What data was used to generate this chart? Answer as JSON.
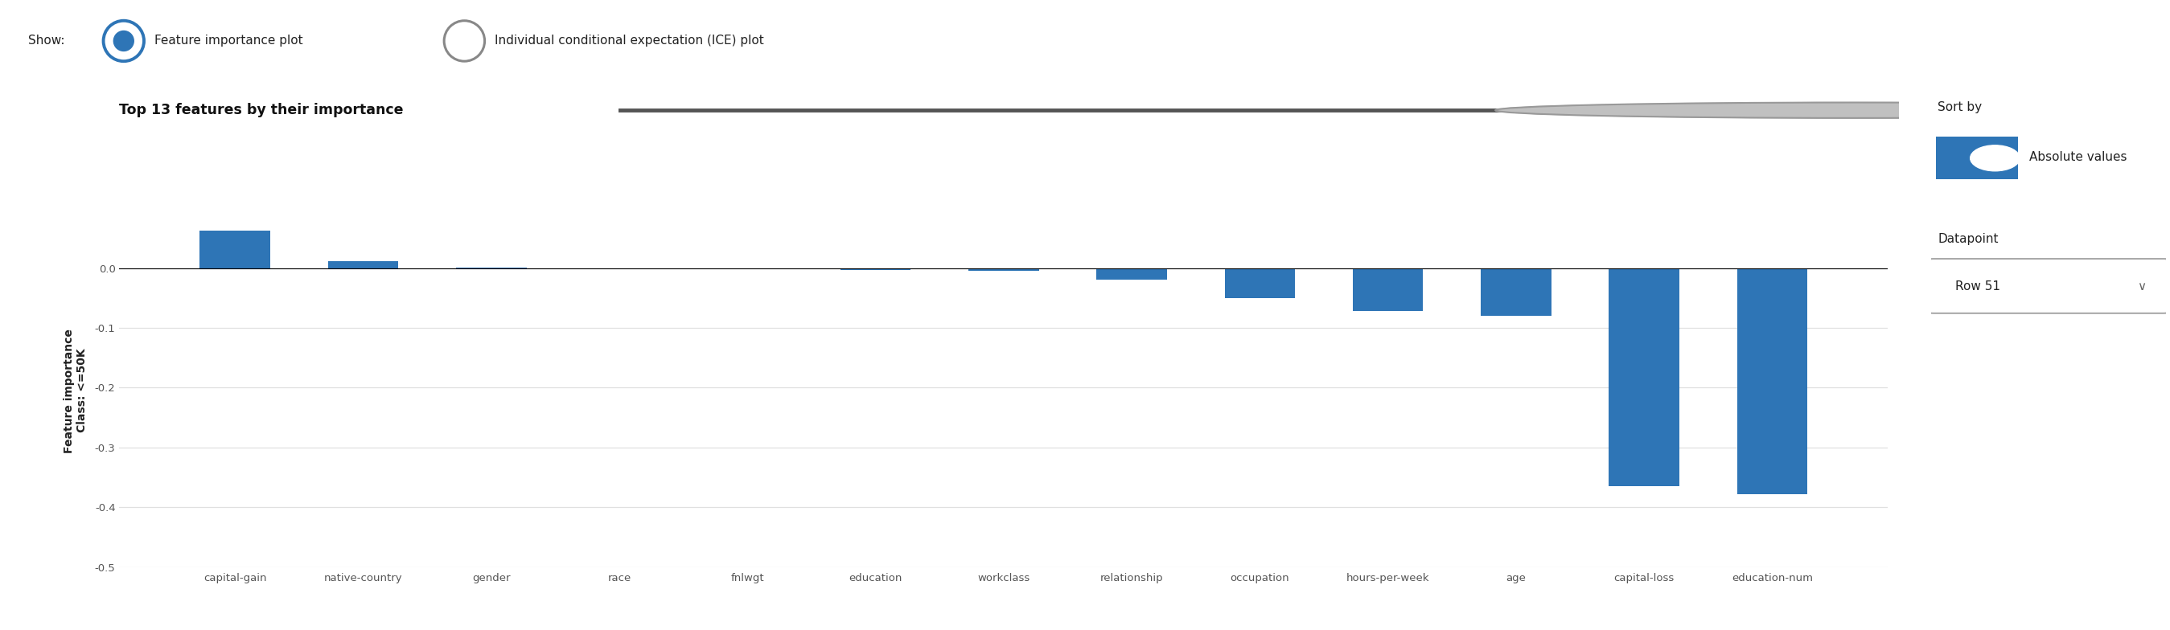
{
  "categories": [
    "capital-gain",
    "native-country",
    "gender",
    "race",
    "fnlwgt",
    "education",
    "workclass",
    "relationship",
    "occupation",
    "hours-per-week",
    "age",
    "capital-loss",
    "education-num"
  ],
  "values": [
    0.062,
    0.012,
    0.001,
    -0.001,
    -0.001,
    -0.003,
    -0.005,
    -0.02,
    -0.05,
    -0.072,
    -0.08,
    -0.365,
    -0.378
  ],
  "bar_color": "#2e75b6",
  "ylabel_line1": "Feature importance",
  "ylabel_line2": "Class: <=50K",
  "ylim": [
    -0.5,
    0.09
  ],
  "yticks": [
    0.0,
    -0.1,
    -0.2,
    -0.3,
    -0.4,
    -0.5
  ],
  "background_color": "#ffffff",
  "grid_color": "#e0e0e0",
  "show_label": "Show:",
  "radio1_label": "Feature importance plot",
  "radio2_label": "Individual conditional expectation (ICE) plot",
  "sort_by_label": "Sort by",
  "sort_by_value": "Absolute values",
  "datapoint_label": "Datapoint",
  "datapoint_value": "Row 51",
  "top_n_label": "Top 13 features by their importance",
  "bar_color_toggle": "#2e75b6",
  "tick_color": "#555555",
  "label_fontsize": 11,
  "tick_fontsize": 9.5
}
